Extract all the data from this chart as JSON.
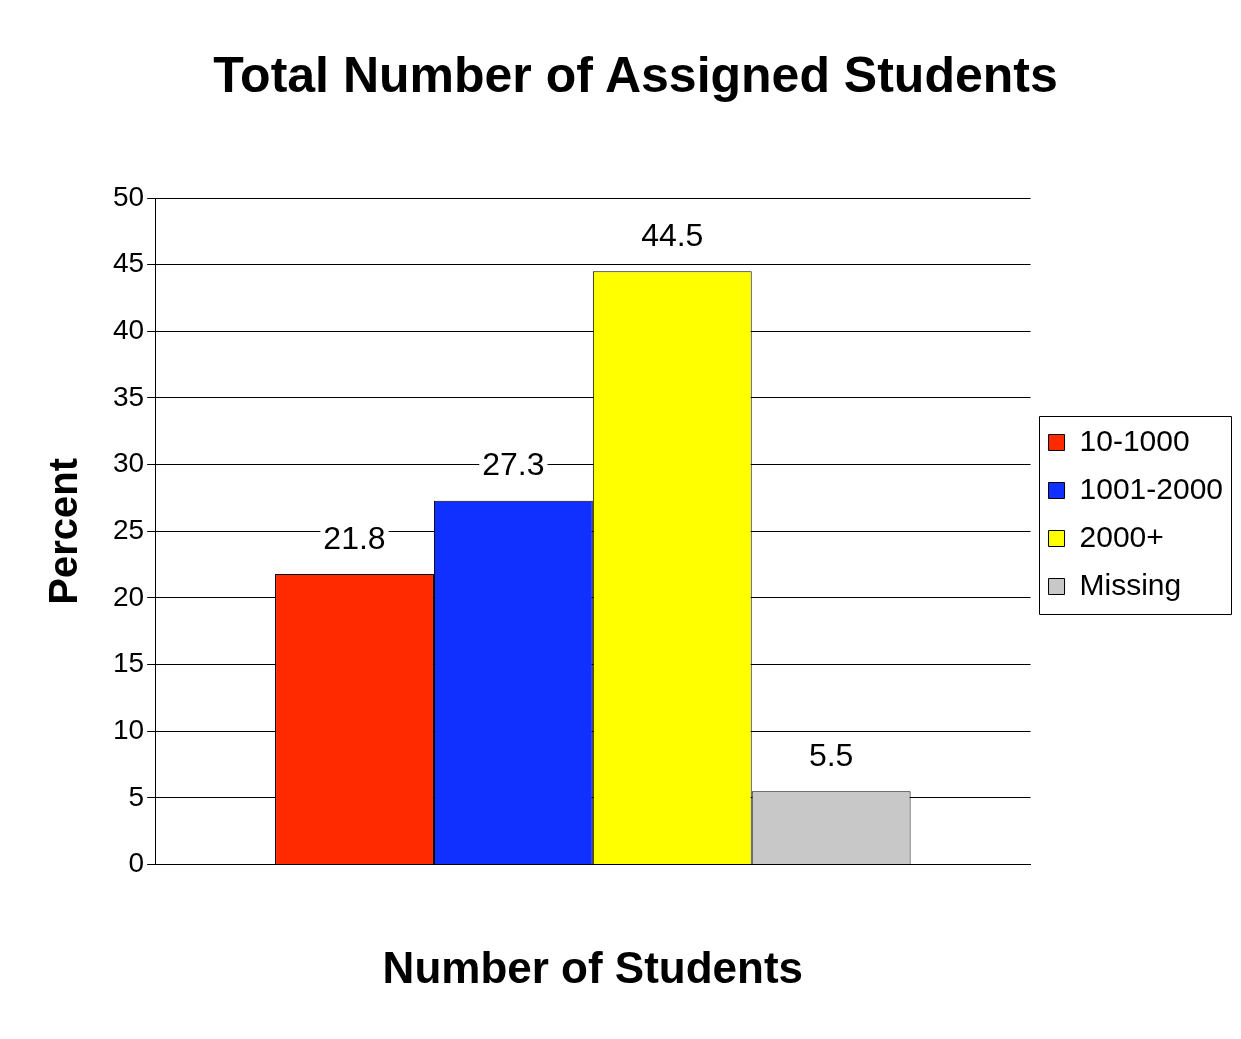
{
  "chart_data": {
    "type": "bar",
    "title": "Total Number of Assigned Students",
    "xlabel": "Number of Students",
    "ylabel": "Percent",
    "categories": [
      null
    ],
    "series": [
      {
        "name": "10-1000",
        "color": "#ff2a00",
        "values": [
          21.8
        ]
      },
      {
        "name": "1001-2000",
        "color": "#1030ff",
        "values": [
          27.3
        ]
      },
      {
        "name": "2000+",
        "color": "#ffff00",
        "values": [
          44.5
        ]
      },
      {
        "name": "Missing",
        "color": "#c8c8c8",
        "values": [
          5.5
        ]
      }
    ],
    "ylim": [
      0,
      50
    ],
    "yticks": [
      0,
      5,
      10,
      15,
      20,
      25,
      30,
      35,
      40,
      45,
      50
    ],
    "grid": "y",
    "legend": "right",
    "data_labels": true
  }
}
